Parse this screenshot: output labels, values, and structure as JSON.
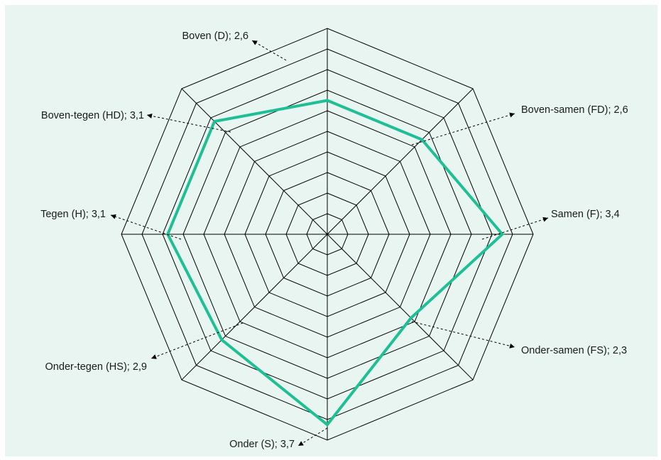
{
  "colors": {
    "background": "#e8f5f0",
    "grid": "#000000",
    "series": "#1fbf96"
  },
  "chart_data": {
    "type": "radar",
    "title": "",
    "axes": [
      "Boven (D); 2,6",
      "Boven-samen (FD); 2,6",
      "Samen (F); 3,4",
      "Onder-samen (FS); 2,3",
      "Onder (S); 3,7",
      "Onder-tegen (HS); 2,9",
      "Tegen (H); 3,1",
      "Boven-tegen (HD); 3,1"
    ],
    "series": [
      {
        "values": [
          2.6,
          2.6,
          3.4,
          2.3,
          3.7,
          2.9,
          3.1,
          3.1
        ]
      }
    ],
    "rmax": 4.0,
    "grid_rings": 10,
    "grid": true,
    "legend": "none"
  }
}
